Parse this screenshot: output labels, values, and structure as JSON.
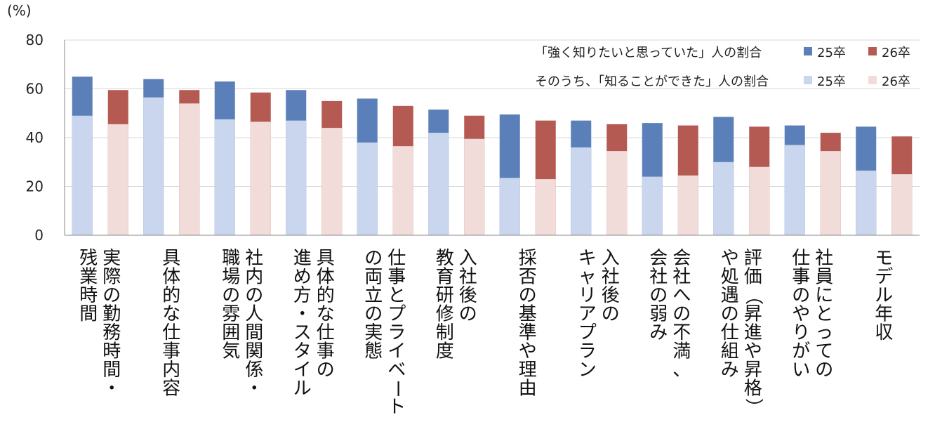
{
  "chart_data": {
    "type": "bar",
    "stacked_overlay": true,
    "y_unit": "(%)",
    "ylim": [
      0,
      80
    ],
    "yticks": [
      0,
      20,
      40,
      60,
      80
    ],
    "grid": true,
    "legend_position": "top-right",
    "legend": {
      "row1_caption": "「強く知りたいと思っていた」人の割合",
      "row2_caption": "そのうち、「知ることができた」人の割合",
      "series_25": "25卒",
      "series_26": "26卒"
    },
    "colors": {
      "total_25": "#5b7fb8",
      "known_25": "#c9d6ee",
      "total_26": "#b55a52",
      "known_26": "#f1dcd9",
      "axis": "#888888",
      "grid": "#d9d9d9"
    },
    "categories": [
      [
        "実際の勤務時間・",
        "残業時間"
      ],
      [
        "具体的な仕事内容"
      ],
      [
        "社内の人間関係・",
        "職場の雰囲気"
      ],
      [
        "具体的な仕事の",
        "進め方・スタイル"
      ],
      [
        "仕事とプライベート",
        "の両立の実態"
      ],
      [
        "入社後の",
        "教育研修制度"
      ],
      [
        "採否の基準や理由"
      ],
      [
        "入社後の",
        "キャリアプラン"
      ],
      [
        "会社への不満、",
        "会社の弱み"
      ],
      [
        "評価（昇進や昇格）",
        "や処遇の仕組み"
      ],
      [
        "社員にとっての",
        "仕事のやりがい"
      ],
      [
        "モデル年収"
      ]
    ],
    "series": [
      {
        "name": "「強く知りたいと思っていた」人の割合 25卒",
        "values": [
          65,
          64,
          63,
          59.5,
          56,
          51.5,
          49.5,
          47,
          46,
          48.5,
          45,
          44.5
        ]
      },
      {
        "name": "「強く知りたいと思っていた」人の割合 26卒",
        "values": [
          59.5,
          59.5,
          58.5,
          55,
          53,
          49,
          47,
          45.5,
          45,
          44.5,
          42,
          40.5
        ]
      },
      {
        "name": "そのうち、「知ることができた」人の割合 25卒",
        "values": [
          49,
          56.5,
          47.5,
          47,
          38,
          42,
          23.5,
          36,
          24,
          30,
          37,
          26.5
        ]
      },
      {
        "name": "そのうち、「知ることができた」人の割合 26卒",
        "values": [
          45.5,
          54,
          46.5,
          44,
          36.5,
          39.5,
          23,
          34.5,
          24.5,
          28,
          34.5,
          25
        ]
      }
    ]
  }
}
